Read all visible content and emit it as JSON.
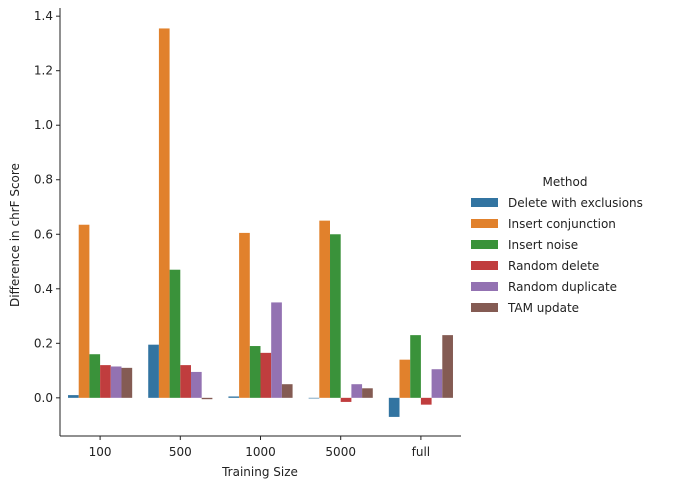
{
  "chart_data": {
    "type": "bar",
    "xlabel": "Training Size",
    "ylabel": "Difference in chrF Score",
    "categories": [
      "100",
      "500",
      "1000",
      "5000",
      "full"
    ],
    "ylim": [
      -0.14,
      1.43
    ],
    "yticks": [
      "0.0",
      "0.2",
      "0.4",
      "0.6",
      "0.8",
      "1.0",
      "1.2",
      "1.4"
    ],
    "legend": {
      "title": "Method",
      "position": "right"
    },
    "grid": false,
    "series": [
      {
        "name": "Delete with exclusions",
        "color": "#3274a1",
        "values": [
          0.01,
          0.195,
          0.005,
          0.0,
          -0.07
        ]
      },
      {
        "name": "Insert conjunction",
        "color": "#e1812c",
        "values": [
          0.635,
          1.355,
          0.605,
          0.65,
          0.14
        ]
      },
      {
        "name": "Insert noise",
        "color": "#3a923a",
        "values": [
          0.16,
          0.47,
          0.19,
          0.6,
          0.23
        ]
      },
      {
        "name": "Random delete",
        "color": "#c03d3e",
        "values": [
          0.12,
          0.12,
          0.165,
          -0.015,
          -0.025
        ]
      },
      {
        "name": "Random duplicate",
        "color": "#9372b2",
        "values": [
          0.115,
          0.095,
          0.35,
          0.05,
          0.105
        ]
      },
      {
        "name": "TAM update",
        "color": "#845b53",
        "values": [
          0.11,
          -0.005,
          0.05,
          0.035,
          0.23
        ]
      }
    ]
  }
}
